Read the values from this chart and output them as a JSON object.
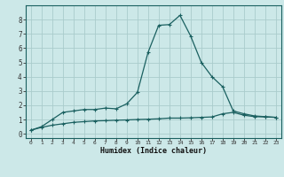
{
  "title": "",
  "xlabel": "Humidex (Indice chaleur)",
  "ylabel": "",
  "bg_color": "#cce8e8",
  "grid_color": "#aacccc",
  "line_color": "#1a6060",
  "spine_color": "#1a6060",
  "xlim": [
    -0.5,
    23.5
  ],
  "ylim": [
    -0.3,
    9.0
  ],
  "xticks": [
    0,
    1,
    2,
    3,
    4,
    5,
    6,
    7,
    8,
    9,
    10,
    11,
    12,
    13,
    14,
    15,
    16,
    17,
    18,
    19,
    20,
    21,
    22,
    23
  ],
  "yticks": [
    0,
    1,
    2,
    3,
    4,
    5,
    6,
    7,
    8
  ],
  "curve1_x": [
    0,
    1,
    2,
    3,
    4,
    5,
    6,
    7,
    8,
    9,
    10,
    11,
    12,
    13,
    14,
    15,
    16,
    17,
    18,
    19,
    20,
    21,
    22,
    23
  ],
  "curve1_y": [
    0.25,
    0.5,
    1.0,
    1.5,
    1.6,
    1.7,
    1.7,
    1.8,
    1.75,
    2.1,
    2.9,
    5.7,
    7.6,
    7.65,
    8.3,
    6.85,
    5.0,
    4.0,
    3.3,
    1.6,
    1.4,
    1.25,
    1.2,
    1.15
  ],
  "curve2_x": [
    0,
    1,
    2,
    3,
    4,
    5,
    6,
    7,
    8,
    9,
    10,
    11,
    12,
    13,
    14,
    15,
    16,
    17,
    18,
    19,
    20,
    21,
    22,
    23
  ],
  "curve2_y": [
    0.25,
    0.45,
    0.6,
    0.7,
    0.8,
    0.85,
    0.9,
    0.92,
    0.95,
    0.97,
    1.0,
    1.02,
    1.05,
    1.1,
    1.1,
    1.12,
    1.15,
    1.18,
    1.4,
    1.5,
    1.3,
    1.2,
    1.18,
    1.15
  ],
  "xlabel_fontsize": 6.0,
  "tick_fontsize_x": 4.5,
  "tick_fontsize_y": 5.5
}
